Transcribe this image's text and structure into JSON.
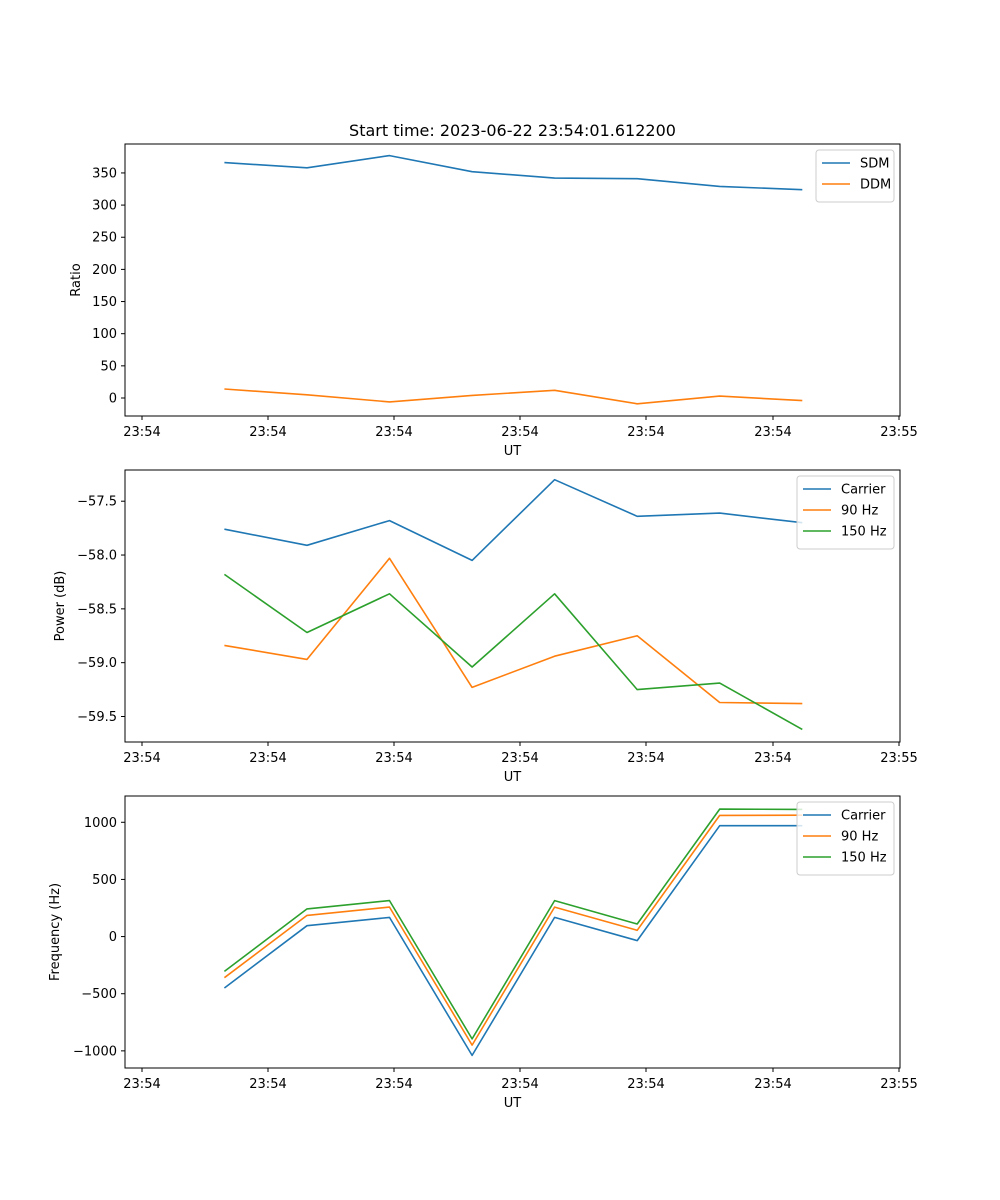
{
  "chart_data": [
    {
      "type": "line",
      "title": "Start time: 2023-06-22 23:54:01.612200",
      "xlabel": "UT",
      "ylabel": "Ratio",
      "x_tick_labels": [
        "23:54",
        "23:54",
        "23:54",
        "23:54",
        "23:54",
        "23:54",
        "23:54",
        "23:55"
      ],
      "x": [
        0.49,
        0.98,
        1.47,
        1.96,
        2.45,
        2.94,
        3.43,
        3.92
      ],
      "xlim": [
        -0.1,
        4.5
      ],
      "ylim": [
        -28,
        395
      ],
      "yticks": [
        0,
        50,
        100,
        150,
        200,
        250,
        300,
        350
      ],
      "legend": "top-right",
      "grid": false,
      "series": [
        {
          "name": "SDM",
          "color": "#1f77b4",
          "values": [
            366,
            358,
            377,
            352,
            342,
            341,
            329,
            324
          ]
        },
        {
          "name": "DDM",
          "color": "#ff7f0e",
          "values": [
            14,
            5,
            -6,
            4,
            12,
            -9,
            3,
            -4
          ]
        }
      ]
    },
    {
      "type": "line",
      "title": "",
      "xlabel": "UT",
      "ylabel": "Power (dB)",
      "x_tick_labels": [
        "23:54",
        "23:54",
        "23:54",
        "23:54",
        "23:54",
        "23:54",
        "23:54",
        "23:55"
      ],
      "x": [
        0.49,
        0.98,
        1.47,
        1.96,
        2.45,
        2.94,
        3.43,
        3.92
      ],
      "xlim": [
        -0.1,
        4.5
      ],
      "ylim": [
        -59.737,
        -57.21
      ],
      "yticks": [
        -57.5,
        -58.0,
        -58.5,
        -59.0,
        -59.5
      ],
      "ytick_labels": [
        "−57.5",
        "−58.0",
        "−58.5",
        "−59.0",
        "−59.5"
      ],
      "legend": "top-right",
      "grid": false,
      "series": [
        {
          "name": "Carrier",
          "color": "#1f77b4",
          "values": [
            -57.76,
            -57.91,
            -57.68,
            -58.05,
            -57.3,
            -57.64,
            -57.61,
            -57.7
          ]
        },
        {
          "name": "90 Hz",
          "color": "#ff7f0e",
          "values": [
            -58.84,
            -58.97,
            -58.03,
            -59.23,
            -58.94,
            -58.75,
            -59.37,
            -59.38
          ]
        },
        {
          "name": "150 Hz",
          "color": "#2ca02c",
          "values": [
            -58.18,
            -58.72,
            -58.36,
            -59.04,
            -58.36,
            -59.25,
            -59.19,
            -59.62
          ]
        }
      ]
    },
    {
      "type": "line",
      "title": "",
      "xlabel": "UT",
      "ylabel": "Frequency (Hz)",
      "x_tick_labels": [
        "23:54",
        "23:54",
        "23:54",
        "23:54",
        "23:54",
        "23:54",
        "23:54",
        "23:55"
      ],
      "x": [
        0.49,
        0.98,
        1.47,
        1.96,
        2.45,
        2.94,
        3.43,
        3.92
      ],
      "xlim": [
        -0.1,
        4.5
      ],
      "ylim": [
        -1150,
        1230
      ],
      "yticks": [
        1000,
        500,
        0,
        -500,
        -1000
      ],
      "ytick_labels": [
        "1000",
        "500",
        "0",
        "−500",
        "−1000"
      ],
      "legend": "top-right",
      "grid": false,
      "series": [
        {
          "name": "Carrier",
          "color": "#1f77b4",
          "values": [
            -450,
            95,
            168,
            -1040,
            168,
            -35,
            970,
            970
          ]
        },
        {
          "name": "90 Hz",
          "color": "#ff7f0e",
          "values": [
            -360,
            185,
            258,
            -950,
            258,
            55,
            1060,
            1062
          ]
        },
        {
          "name": "150 Hz",
          "color": "#2ca02c",
          "values": [
            -305,
            242,
            315,
            -895,
            315,
            110,
            1115,
            1113
          ]
        }
      ]
    }
  ]
}
